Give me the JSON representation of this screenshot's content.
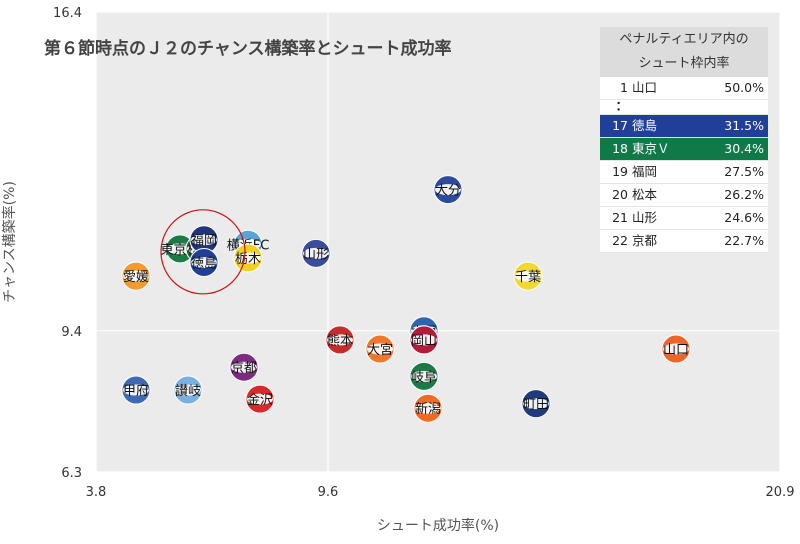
{
  "chart_data": {
    "type": "scatter",
    "title": "第６節時点のＪ２のチャンス構築率とシュート成功率",
    "xlabel": "シュート成功率(%)",
    "ylabel": "チャンス構築率(%)",
    "xlim": [
      3.8,
      20.9
    ],
    "ylim": [
      6.3,
      16.4
    ],
    "xticks": [
      "3.8",
      "9.6",
      "20.9"
    ],
    "yticks": [
      "6.3",
      "9.4",
      "16.4"
    ],
    "grid": true,
    "points": [
      {
        "name": "大分",
        "x": 12.6,
        "y": 12.5,
        "color": "#2e4a9e"
      },
      {
        "name": "東京Ｖ",
        "x": 5.9,
        "y": 11.2,
        "color": "#1b7a45"
      },
      {
        "name": "松本",
        "x": 6.4,
        "y": 11.2,
        "color": "#1b6a36"
      },
      {
        "name": "福岡",
        "x": 6.5,
        "y": 11.4,
        "color": "#23357a"
      },
      {
        "name": "徳島",
        "x": 6.5,
        "y": 10.9,
        "color": "#1f3f99"
      },
      {
        "name": "横浜FC",
        "x": 7.6,
        "y": 11.3,
        "color": "#5aa3d8"
      },
      {
        "name": "栃木",
        "x": 7.6,
        "y": 11.0,
        "color": "#f0d020"
      },
      {
        "name": "山形",
        "x": 9.3,
        "y": 11.1,
        "color": "#3a4d9b"
      },
      {
        "name": "愛媛",
        "x": 4.8,
        "y": 10.6,
        "color": "#f39a2d"
      },
      {
        "name": "千葉",
        "x": 14.6,
        "y": 10.6,
        "color": "#f2d730"
      },
      {
        "name": "水戸",
        "x": 12.0,
        "y": 9.4,
        "color": "#2f64ae"
      },
      {
        "name": "岡山",
        "x": 12.0,
        "y": 9.2,
        "color": "#b11c3d"
      },
      {
        "name": "熊本",
        "x": 9.9,
        "y": 9.2,
        "color": "#c62c2c"
      },
      {
        "name": "大宮",
        "x": 10.9,
        "y": 9.0,
        "color": "#f0782c"
      },
      {
        "name": "山口",
        "x": 18.3,
        "y": 9.0,
        "color": "#ec6628"
      },
      {
        "name": "京都",
        "x": 7.5,
        "y": 8.6,
        "color": "#7b2c80"
      },
      {
        "name": "岐阜",
        "x": 12.0,
        "y": 8.4,
        "color": "#1b7a45"
      },
      {
        "name": "甲府",
        "x": 4.8,
        "y": 8.1,
        "color": "#3f6ab3"
      },
      {
        "name": "讃岐",
        "x": 6.1,
        "y": 8.1,
        "color": "#7ab0e0"
      },
      {
        "name": "金沢",
        "x": 7.9,
        "y": 7.9,
        "color": "#d82a2a"
      },
      {
        "name": "新潟",
        "x": 12.1,
        "y": 7.7,
        "color": "#f26b22"
      },
      {
        "name": "町田",
        "x": 14.8,
        "y": 7.8,
        "color": "#1f3a7d"
      }
    ],
    "highlight": {
      "x": 6.4,
      "y": 11.2,
      "color": "#cc1111"
    }
  },
  "panel": {
    "header_line1": "ペナルティエリア内の",
    "header_line2": "シュート枠内率",
    "rows": [
      {
        "rank": "1",
        "name": "山口",
        "pct": "50.0%",
        "bg": ""
      },
      {
        "rank": "：",
        "name": "",
        "pct": "",
        "bg": "",
        "dots": true
      },
      {
        "rank": "17",
        "name": "徳島",
        "pct": "31.5%",
        "bg": "#1f3f99"
      },
      {
        "rank": "18",
        "name": "東京Ｖ",
        "pct": "30.4%",
        "bg": "#0f7a47"
      },
      {
        "rank": "19",
        "name": "福岡",
        "pct": "27.5%",
        "bg": ""
      },
      {
        "rank": "20",
        "name": "松本",
        "pct": "26.2%",
        "bg": ""
      },
      {
        "rank": "21",
        "name": "山形",
        "pct": "24.6%",
        "bg": ""
      },
      {
        "rank": "22",
        "name": "京都",
        "pct": "22.7%",
        "bg": ""
      }
    ]
  }
}
